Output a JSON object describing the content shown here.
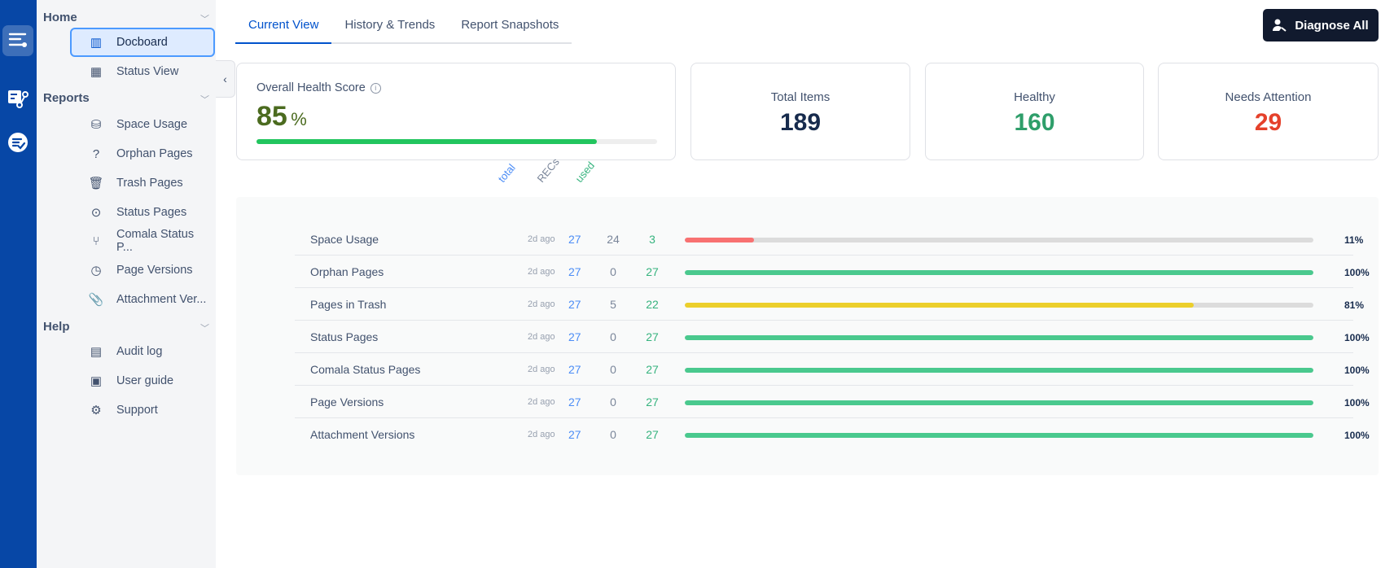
{
  "rail": {
    "icons": [
      "menu-icon",
      "report-flow-icon",
      "checklist-icon"
    ]
  },
  "sidebar": {
    "sections": [
      {
        "title": "Home",
        "items": [
          {
            "label": "Docboard",
            "icon": "layout-icon",
            "active": true
          },
          {
            "label": "Status View",
            "icon": "grid-icon"
          }
        ]
      },
      {
        "title": "Reports",
        "items": [
          {
            "label": "Space Usage",
            "icon": "drive-icon"
          },
          {
            "label": "Orphan Pages",
            "icon": "question-file-icon"
          },
          {
            "label": "Trash Pages",
            "icon": "trash-icon"
          },
          {
            "label": "Status Pages",
            "icon": "target-icon"
          },
          {
            "label": "Comala Status P...",
            "icon": "branch-icon"
          },
          {
            "label": "Page Versions",
            "icon": "file-clock-icon"
          },
          {
            "label": "Attachment Ver...",
            "icon": "paperclip-icon"
          }
        ]
      },
      {
        "title": "Help",
        "items": [
          {
            "label": "Audit log",
            "icon": "document-icon"
          },
          {
            "label": "User guide",
            "icon": "guide-icon"
          },
          {
            "label": "Support",
            "icon": "support-icon"
          }
        ]
      }
    ]
  },
  "tabs": [
    "Current View",
    "History & Trends",
    "Report Snapshots"
  ],
  "diagnose_label": "Diagnose All",
  "health": {
    "label": "Overall Health Score",
    "value": "85",
    "unit": "%",
    "progress": 85,
    "color": "#22c55e"
  },
  "stats": [
    {
      "label": "Total Items",
      "value": "189",
      "color": "#172b4d"
    },
    {
      "label": "Healthy",
      "value": "160",
      "color": "#2e9e6a"
    },
    {
      "label": "Needs Attention",
      "value": "29",
      "color": "#e5412b"
    }
  ],
  "columns": {
    "total": "total",
    "recs": "RECs",
    "used": "used"
  },
  "rows": [
    {
      "name": "Space Usage",
      "ago": "2d ago",
      "total": "27",
      "recs": "24",
      "used": "3",
      "percent": 11,
      "pct": "11%",
      "color": "#f87171"
    },
    {
      "name": "Orphan Pages",
      "ago": "2d ago",
      "total": "27",
      "recs": "0",
      "used": "27",
      "percent": 100,
      "pct": "100%",
      "color": "#4ac98e"
    },
    {
      "name": "Pages in Trash",
      "ago": "2d ago",
      "total": "27",
      "recs": "5",
      "used": "22",
      "percent": 81,
      "pct": "81%",
      "color": "#eccf2b"
    },
    {
      "name": "Status Pages",
      "ago": "2d ago",
      "total": "27",
      "recs": "0",
      "used": "27",
      "percent": 100,
      "pct": "100%",
      "color": "#4ac98e"
    },
    {
      "name": "Comala Status Pages",
      "ago": "2d ago",
      "total": "27",
      "recs": "0",
      "used": "27",
      "percent": 100,
      "pct": "100%",
      "color": "#4ac98e"
    },
    {
      "name": "Page Versions",
      "ago": "2d ago",
      "total": "27",
      "recs": "0",
      "used": "27",
      "percent": 100,
      "pct": "100%",
      "color": "#4ac98e"
    },
    {
      "name": "Attachment Versions",
      "ago": "2d ago",
      "total": "27",
      "recs": "0",
      "used": "27",
      "percent": 100,
      "pct": "100%",
      "color": "#4ac98e"
    }
  ]
}
